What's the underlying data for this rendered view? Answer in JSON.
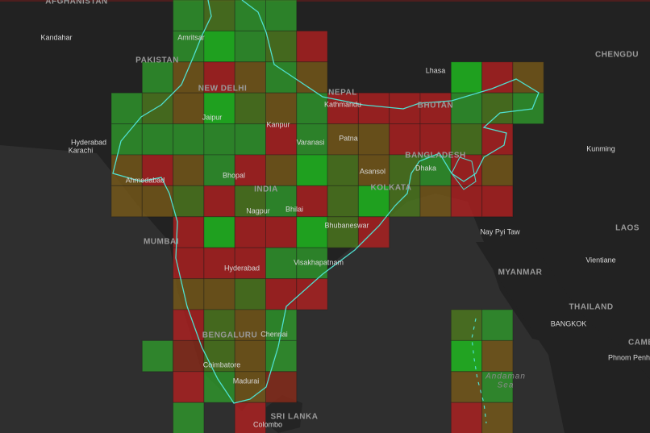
{
  "map": {
    "labels": [
      "AFGHANISTAN",
      "Kandahar",
      "PAKISTAN",
      "Amritsar",
      "NEW DELHI",
      "Jaipur",
      "Kanpur",
      "Lhasa",
      "CHENGDU",
      "NEPAL",
      "Kathmandu",
      "BHUTAN",
      "Hyderabad",
      "Karachi",
      "Varanasi",
      "Patna",
      "BANGLADESH",
      "Kunming",
      "Ahmedabad",
      "Bhopal",
      "INDIA",
      "Asansol",
      "Dhaka",
      "KOLKATA",
      "Nagpur",
      "Bhilai",
      "Bhubaneswar",
      "Nay Pyi Taw",
      "LAOS",
      "MUMBAI",
      "Hyderabad",
      "Visakhapatnam",
      "MYANMAR",
      "Vientiane",
      "THAILAND",
      "BANGKOK",
      "BENGALURU",
      "Chennai",
      "Coimbatore",
      "Madurai",
      "Andaman",
      "Sea",
      "CAMB",
      "Phnom Penh",
      "SRI LANKA",
      "Colombo"
    ]
  }
}
